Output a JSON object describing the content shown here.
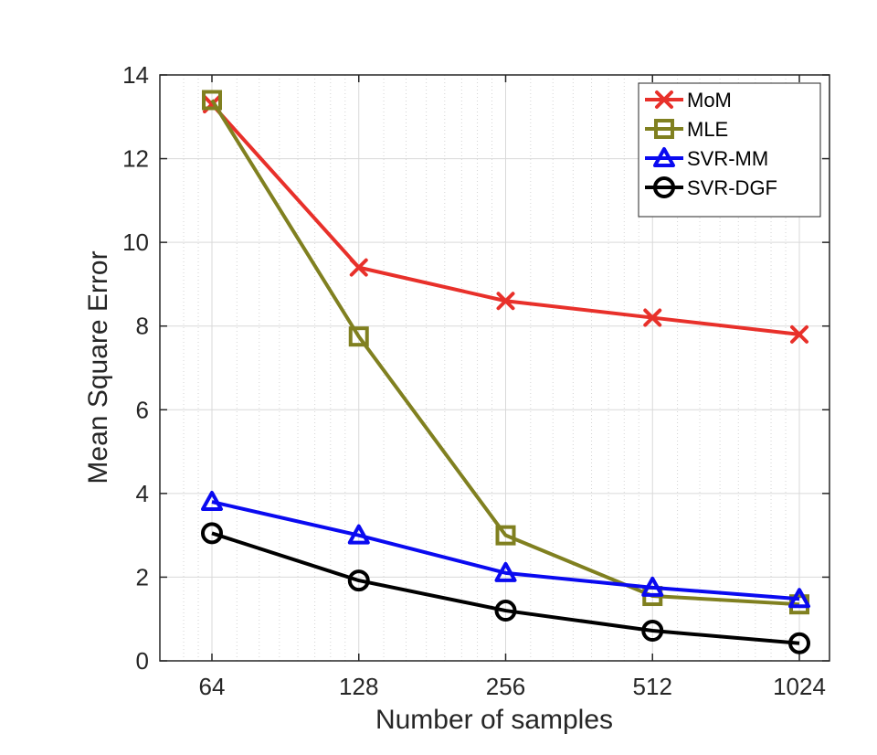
{
  "chart_data": {
    "type": "line",
    "title": "",
    "xlabel": "Number of samples",
    "ylabel": "Mean Square Error",
    "x_scale": "log2",
    "x": [
      64,
      128,
      256,
      512,
      1024
    ],
    "x_tick_labels": [
      "64",
      "128",
      "256",
      "512",
      "1024"
    ],
    "xlim": [
      64,
      1024
    ],
    "ylim": [
      0,
      14
    ],
    "y_ticks": [
      0,
      2,
      4,
      6,
      8,
      10,
      12,
      14
    ],
    "y_tick_labels": [
      "0",
      "2",
      "4",
      "6",
      "8",
      "10",
      "12",
      "14"
    ],
    "grid": true,
    "legend_position": "top-right",
    "series": [
      {
        "name": "MoM",
        "color": "#e8302a",
        "marker": "x",
        "values": [
          13.3,
          9.4,
          8.6,
          8.2,
          7.8
        ]
      },
      {
        "name": "MLE",
        "color": "#808020",
        "marker": "square",
        "values": [
          13.4,
          7.75,
          3.0,
          1.55,
          1.35
        ]
      },
      {
        "name": "SVR-MM",
        "color": "#0a0af0",
        "marker": "triangle",
        "values": [
          3.8,
          3.0,
          2.1,
          1.75,
          1.48
        ]
      },
      {
        "name": "SVR-DGF",
        "color": "#000000",
        "marker": "circle",
        "values": [
          3.05,
          1.92,
          1.2,
          0.72,
          0.42
        ]
      }
    ]
  }
}
